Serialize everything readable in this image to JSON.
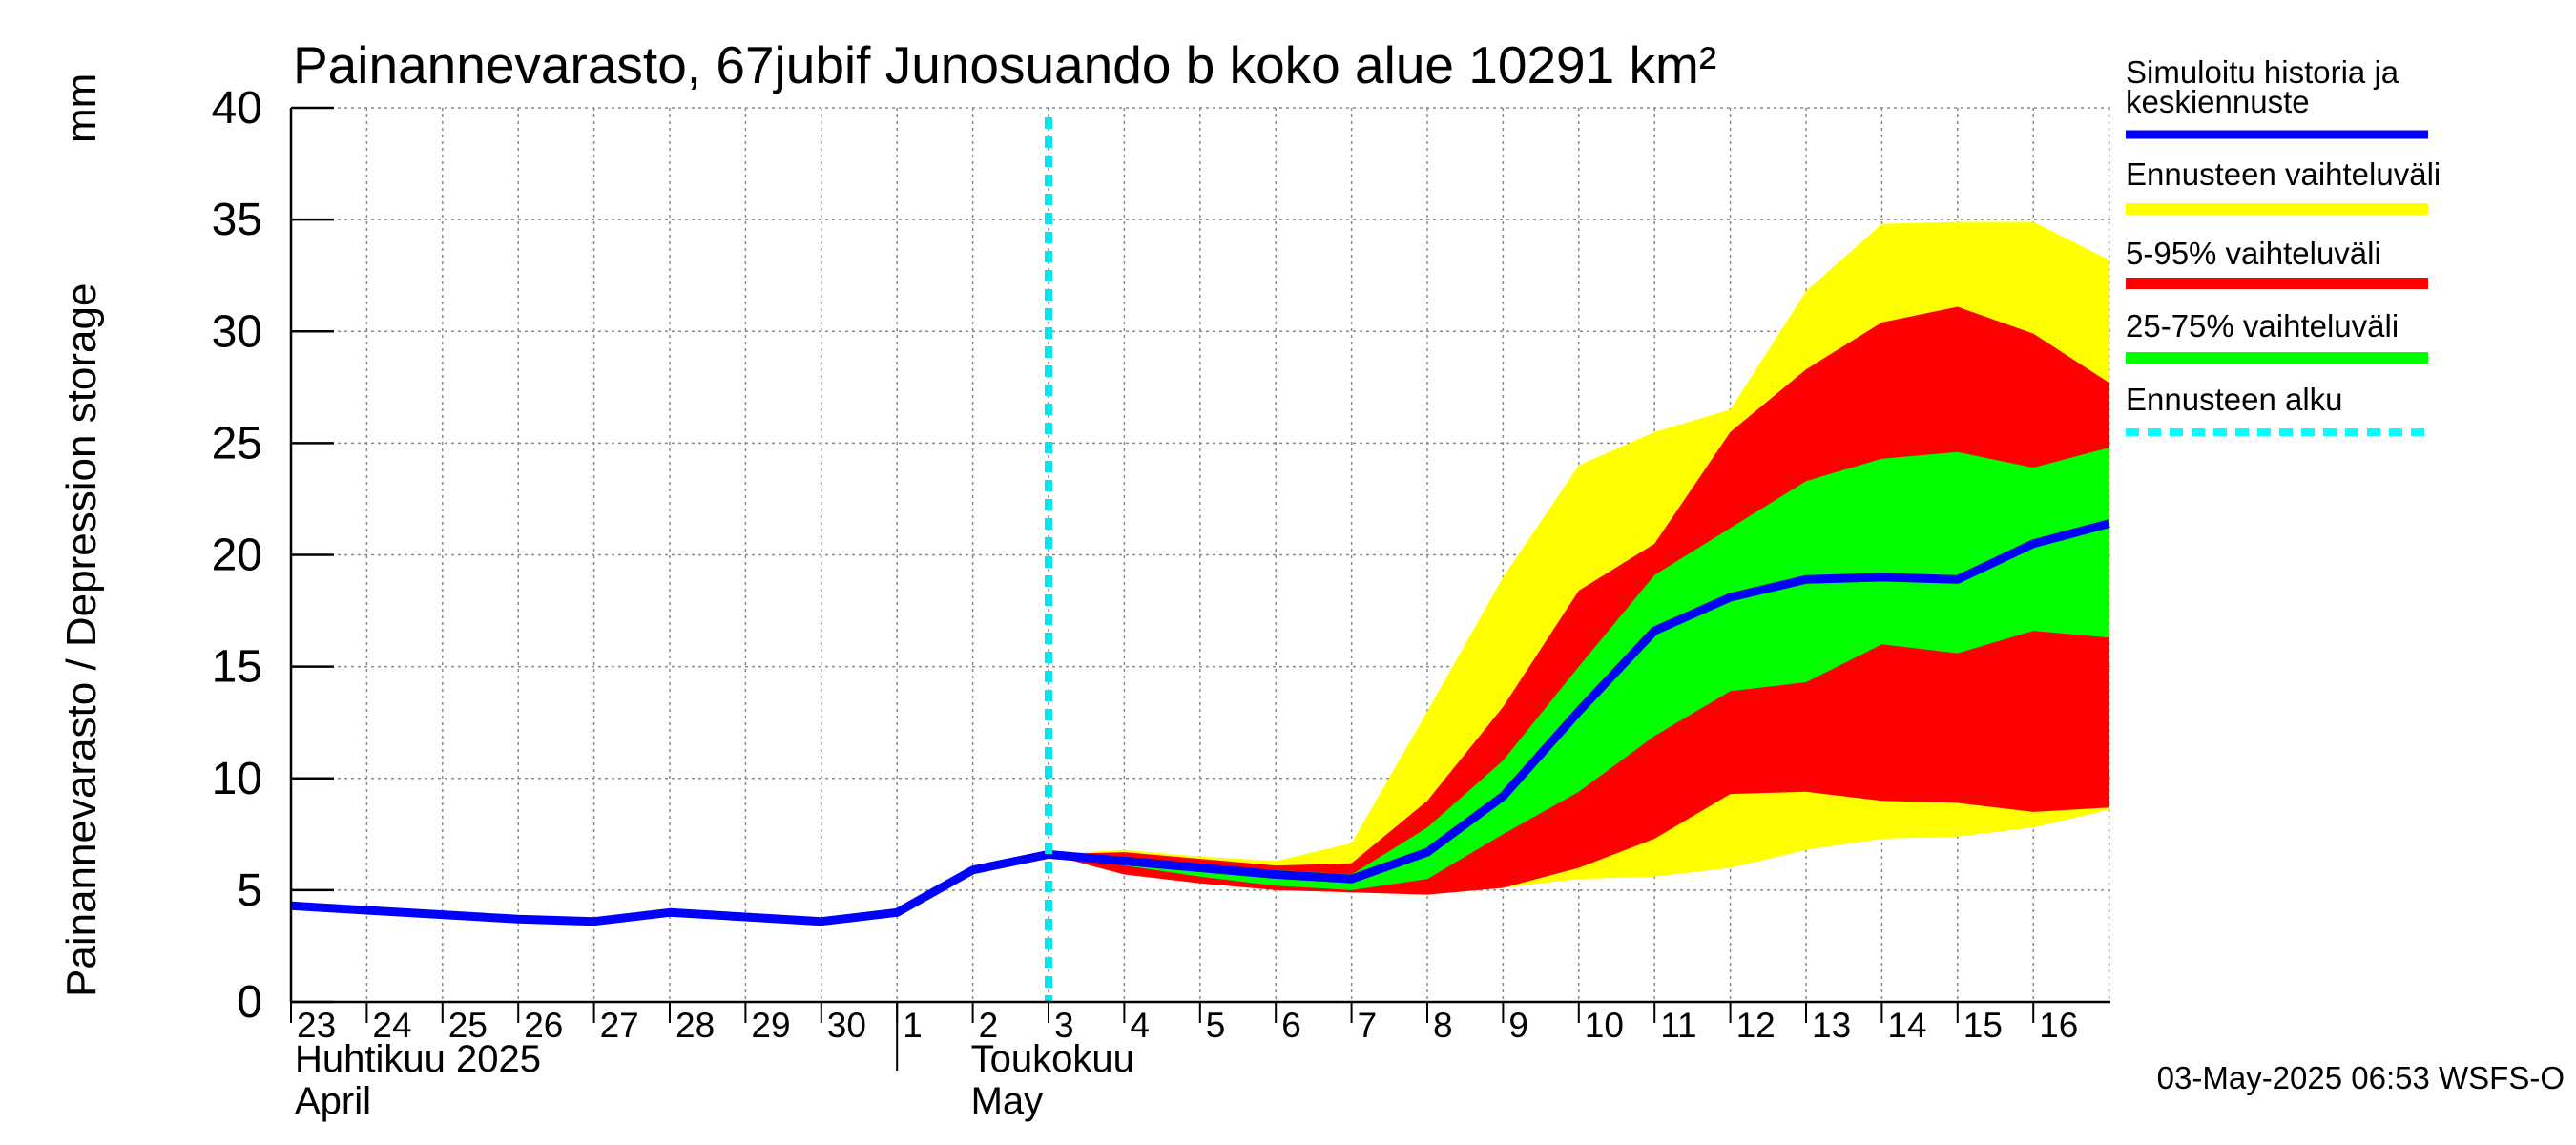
{
  "chart_data": {
    "type": "area",
    "title": "Painannevarasto, 67jubif Junosuando b koko alue 10291 km²",
    "ylabel": "Painannevarasto / Depression storage",
    "yunit": "mm",
    "ylim": [
      0,
      40
    ],
    "yticks": [
      0,
      5,
      10,
      15,
      20,
      25,
      30,
      35,
      40
    ],
    "grid": true,
    "x_day_labels": [
      "23",
      "24",
      "25",
      "26",
      "27",
      "28",
      "29",
      "30",
      "1",
      "2",
      "3",
      "4",
      "5",
      "6",
      "7",
      "8",
      "9",
      "10",
      "11",
      "12",
      "13",
      "14",
      "15",
      "16"
    ],
    "month_labels": [
      {
        "fi": "Huhtikuu  2025",
        "en": "April"
      },
      {
        "fi": "Toukokuu",
        "en": "May"
      }
    ],
    "forecast_start_day": 10.0,
    "history": {
      "name": "Simuloitu historia ja keskiennuste",
      "day": [
        0,
        1,
        2,
        3,
        4,
        5,
        6,
        7,
        8,
        9,
        10
      ],
      "values": [
        4.3,
        4.1,
        3.9,
        3.7,
        3.6,
        4.0,
        3.8,
        3.6,
        4.0,
        5.9,
        6.6
      ]
    },
    "forecast": {
      "day": [
        10,
        11,
        12,
        13,
        14,
        15,
        16,
        17,
        18,
        19,
        20,
        21,
        22,
        23,
        24
      ],
      "median": [
        6.6,
        6.3,
        6.0,
        5.7,
        5.5,
        6.7,
        9.2,
        13.0,
        16.6,
        18.1,
        18.9,
        19.0,
        18.9,
        20.5,
        21.4
      ],
      "min": [
        6.6,
        5.9,
        5.4,
        5.0,
        4.9,
        4.8,
        5.1,
        5.5,
        5.6,
        6.0,
        6.8,
        7.3,
        7.4,
        7.8,
        8.6
      ],
      "max": [
        6.6,
        6.8,
        6.5,
        6.3,
        7.1,
        13.0,
        19.0,
        24.0,
        25.5,
        26.5,
        31.8,
        34.8,
        34.9,
        34.9,
        33.2
      ],
      "p05": [
        6.6,
        5.7,
        5.3,
        5.0,
        4.9,
        4.8,
        5.1,
        6.0,
        7.3,
        9.3,
        9.4,
        9.0,
        8.9,
        8.5,
        8.7
      ],
      "p95": [
        6.6,
        6.7,
        6.4,
        6.1,
        6.2,
        9.0,
        13.2,
        18.4,
        20.5,
        25.5,
        28.3,
        30.4,
        31.1,
        29.9,
        27.7
      ],
      "p25": [
        6.6,
        6.1,
        5.6,
        5.2,
        5.0,
        5.5,
        7.5,
        9.4,
        11.9,
        13.9,
        14.3,
        16.0,
        15.6,
        16.6,
        16.3
      ],
      "p75": [
        6.6,
        6.5,
        6.1,
        5.9,
        5.7,
        7.8,
        10.8,
        15.0,
        19.1,
        21.2,
        23.3,
        24.3,
        24.6,
        23.9,
        24.8
      ]
    },
    "legend": [
      {
        "label": "Simuloitu historia ja",
        "label2": "keskiennuste",
        "color": "#0000ff",
        "style": "line"
      },
      {
        "label": "Ennusteen vaihteluväli",
        "color": "#ffff00",
        "style": "band"
      },
      {
        "label": "5-95% vaihteluväli",
        "color": "#ff0000",
        "style": "band"
      },
      {
        "label": "25-75% vaihteluväli",
        "color": "#00ff00",
        "style": "band"
      },
      {
        "label": "Ennusteen alku",
        "color": "#00ffff",
        "style": "dashed"
      }
    ],
    "footer": "03-May-2025 06:53 WSFS-O"
  }
}
